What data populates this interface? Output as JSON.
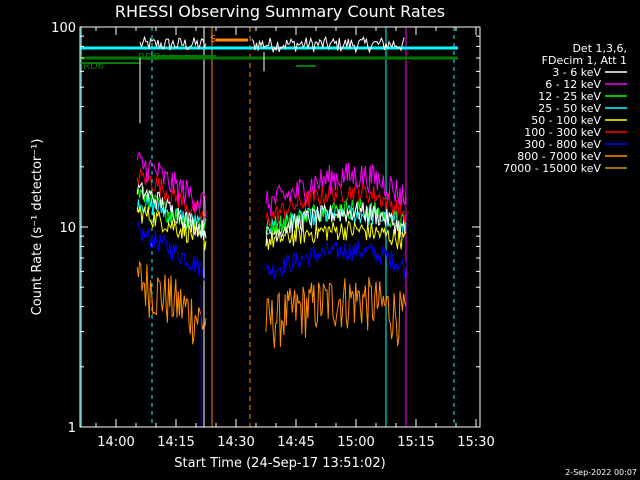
{
  "chart_data": {
    "type": "line",
    "title": "RHESSI Observing Summary Count Rates",
    "xlabel": "Start Time (24-Sep-17 13:51:02)",
    "ylabel": "Count Rate (s⁻¹ detector⁻¹)",
    "yscale": "log",
    "ylim": [
      1,
      100
    ],
    "xlim": [
      "13:51",
      "15:31"
    ],
    "x_ticks": [
      "14:00",
      "14:15",
      "14:30",
      "14:45",
      "15:00",
      "15:15",
      "15:30"
    ],
    "y_ticks": [
      "1",
      "10",
      "100"
    ],
    "legend_header": [
      "Det 1,3,6,",
      "FDecim 1, Att 1"
    ],
    "legend_position": "right",
    "timestamp": "2-Sep-2022 00:07",
    "series": [
      {
        "name": "3 - 6 keV",
        "color": "#ffffff",
        "seg1": [
          15.5,
          14.5,
          13.8,
          12.5,
          11.8,
          11.0,
          10.2,
          9.5
        ],
        "seg2": [
          9.0,
          9.8,
          10.6,
          11.2,
          11.6,
          11.8,
          12.0,
          11.6,
          10.8,
          9.5
        ]
      },
      {
        "name": "6 - 12 keV",
        "color": "#ff00ff",
        "seg1": [
          21,
          20,
          19,
          17,
          16,
          15,
          14,
          13
        ],
        "seg2": [
          13,
          14,
          15,
          16.5,
          17.5,
          18,
          18.2,
          17.5,
          16,
          14
        ]
      },
      {
        "name": "12 - 25 keV",
        "color": "#00ff00",
        "seg1": [
          15.0,
          14.0,
          13.0,
          12.0,
          11.5,
          11.0,
          10.5,
          10.0
        ],
        "seg2": [
          10,
          10.5,
          11,
          11.8,
          12.2,
          12.4,
          12.5,
          12,
          11.2,
          10.2
        ]
      },
      {
        "name": "25 - 50 keV",
        "color": "#00ffff",
        "seg1": [
          13.5,
          13.0,
          12.5,
          12.0,
          11.5,
          11.0,
          10.5,
          10.0
        ],
        "seg2": [
          10,
          10.4,
          10.8,
          11.2,
          11.5,
          11.6,
          11.6,
          11.3,
          10.8,
          10.1
        ]
      },
      {
        "name": "50 - 100 keV",
        "color": "#ffff00",
        "seg1": [
          12.0,
          11.5,
          11.0,
          10.5,
          10.0,
          9.5,
          9.0,
          8.5
        ],
        "seg2": [
          8.5,
          8.8,
          9.1,
          9.4,
          9.6,
          9.7,
          9.7,
          9.4,
          9.0,
          8.6
        ]
      },
      {
        "name": "100 - 300 keV",
        "color": "#ff0000",
        "seg1": [
          18.0,
          17.5,
          16.5,
          15.0,
          14.0,
          13.0,
          12.0,
          11.0
        ],
        "seg2": [
          11.0,
          12.0,
          13.0,
          14.0,
          14.7,
          15.0,
          15.1,
          14.5,
          13.2,
          11.5
        ]
      },
      {
        "name": "300 - 800 keV",
        "color": "#0000ff",
        "seg1": [
          9.5,
          9.0,
          8.5,
          8.0,
          7.5,
          7.0,
          6.5,
          6.0
        ],
        "seg2": [
          6.0,
          6.4,
          6.8,
          7.2,
          7.5,
          7.6,
          7.7,
          7.4,
          7.0,
          6.2
        ]
      },
      {
        "name": "800 - 7000 keV",
        "color": "#ff8c00",
        "seg1": [
          5.6,
          5.2,
          4.8,
          4.5,
          4.2,
          3.9,
          3.6,
          3.3
        ],
        "seg2": [
          3.4,
          3.6,
          3.9,
          4.1,
          4.3,
          4.4,
          4.4,
          4.2,
          3.9,
          3.5
        ]
      },
      {
        "name": "7000 - 15000 keV",
        "color": "#c8a000"
      }
    ],
    "attenuator_labels": [
      "RDC",
      "RD6",
      "S"
    ]
  }
}
